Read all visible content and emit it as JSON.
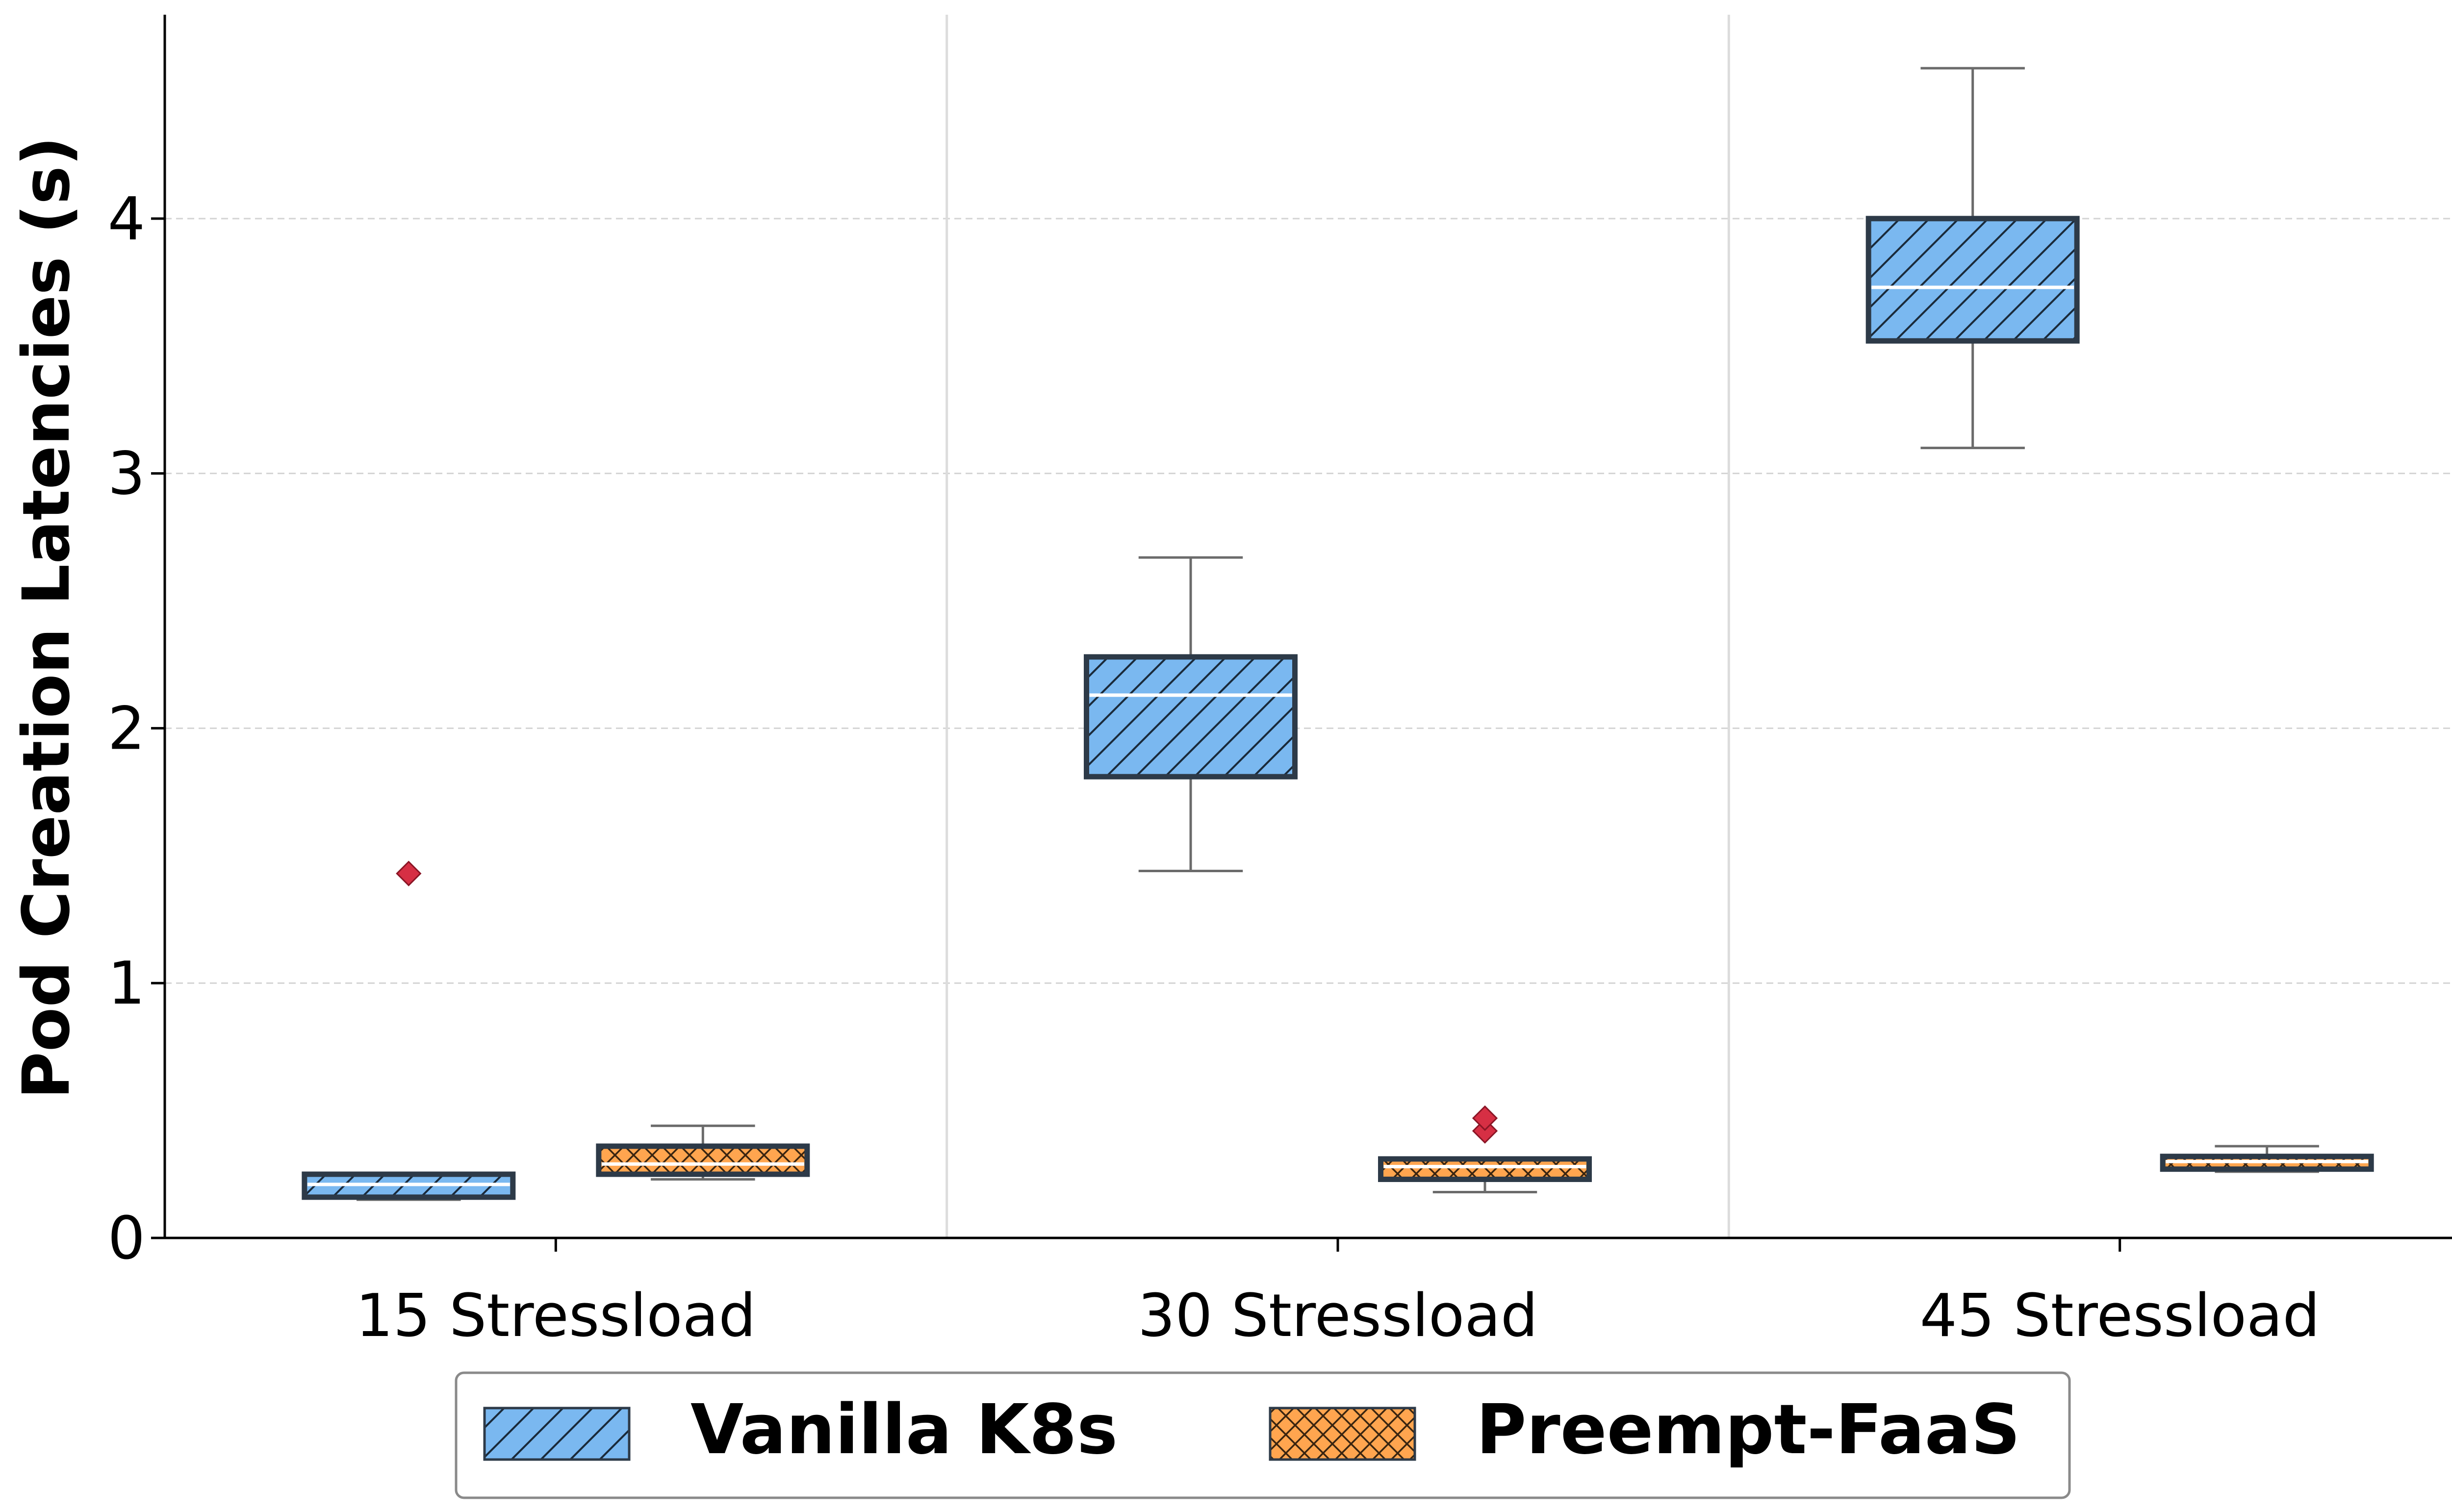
{
  "chart_data": {
    "type": "box",
    "ylabel": "Pod Creation Latencies (s)",
    "xlabel": "",
    "ylim": [
      0,
      4.8
    ],
    "yticks": [
      0,
      1,
      2,
      3,
      4
    ],
    "grid": "y-dashed",
    "legend_placement": "bottom-center",
    "categories": [
      "15 Stressload",
      "30 Stressload",
      "45 Stressload"
    ],
    "series": [
      {
        "name": "Vanilla K8s",
        "color": "#7ab8f0",
        "hatch": "diagonal",
        "boxes": [
          {
            "whisker_low": 0.15,
            "q1": 0.16,
            "median": 0.21,
            "q3": 0.25,
            "whisker_high": 0.25,
            "outliers": [
              1.43
            ]
          },
          {
            "whisker_low": 1.44,
            "q1": 1.81,
            "median": 2.13,
            "q3": 2.28,
            "whisker_high": 2.67,
            "outliers": []
          },
          {
            "whisker_low": 3.1,
            "q1": 3.52,
            "median": 3.73,
            "q3": 4.0,
            "whisker_high": 4.59,
            "outliers": []
          }
        ]
      },
      {
        "name": "Preempt-FaaS",
        "color": "#ffa54f",
        "hatch": "crosshatch",
        "boxes": [
          {
            "whisker_low": 0.23,
            "q1": 0.25,
            "median": 0.29,
            "q3": 0.36,
            "whisker_high": 0.44,
            "outliers": []
          },
          {
            "whisker_low": 0.18,
            "q1": 0.23,
            "median": 0.28,
            "q3": 0.31,
            "whisker_high": 0.31,
            "outliers": [
              0.42,
              0.47
            ]
          },
          {
            "whisker_low": 0.26,
            "q1": 0.27,
            "median": 0.3,
            "q3": 0.32,
            "whisker_high": 0.36,
            "outliers": []
          }
        ]
      }
    ],
    "outlier_color": "#d62f44",
    "median_color": "#ffffff"
  }
}
